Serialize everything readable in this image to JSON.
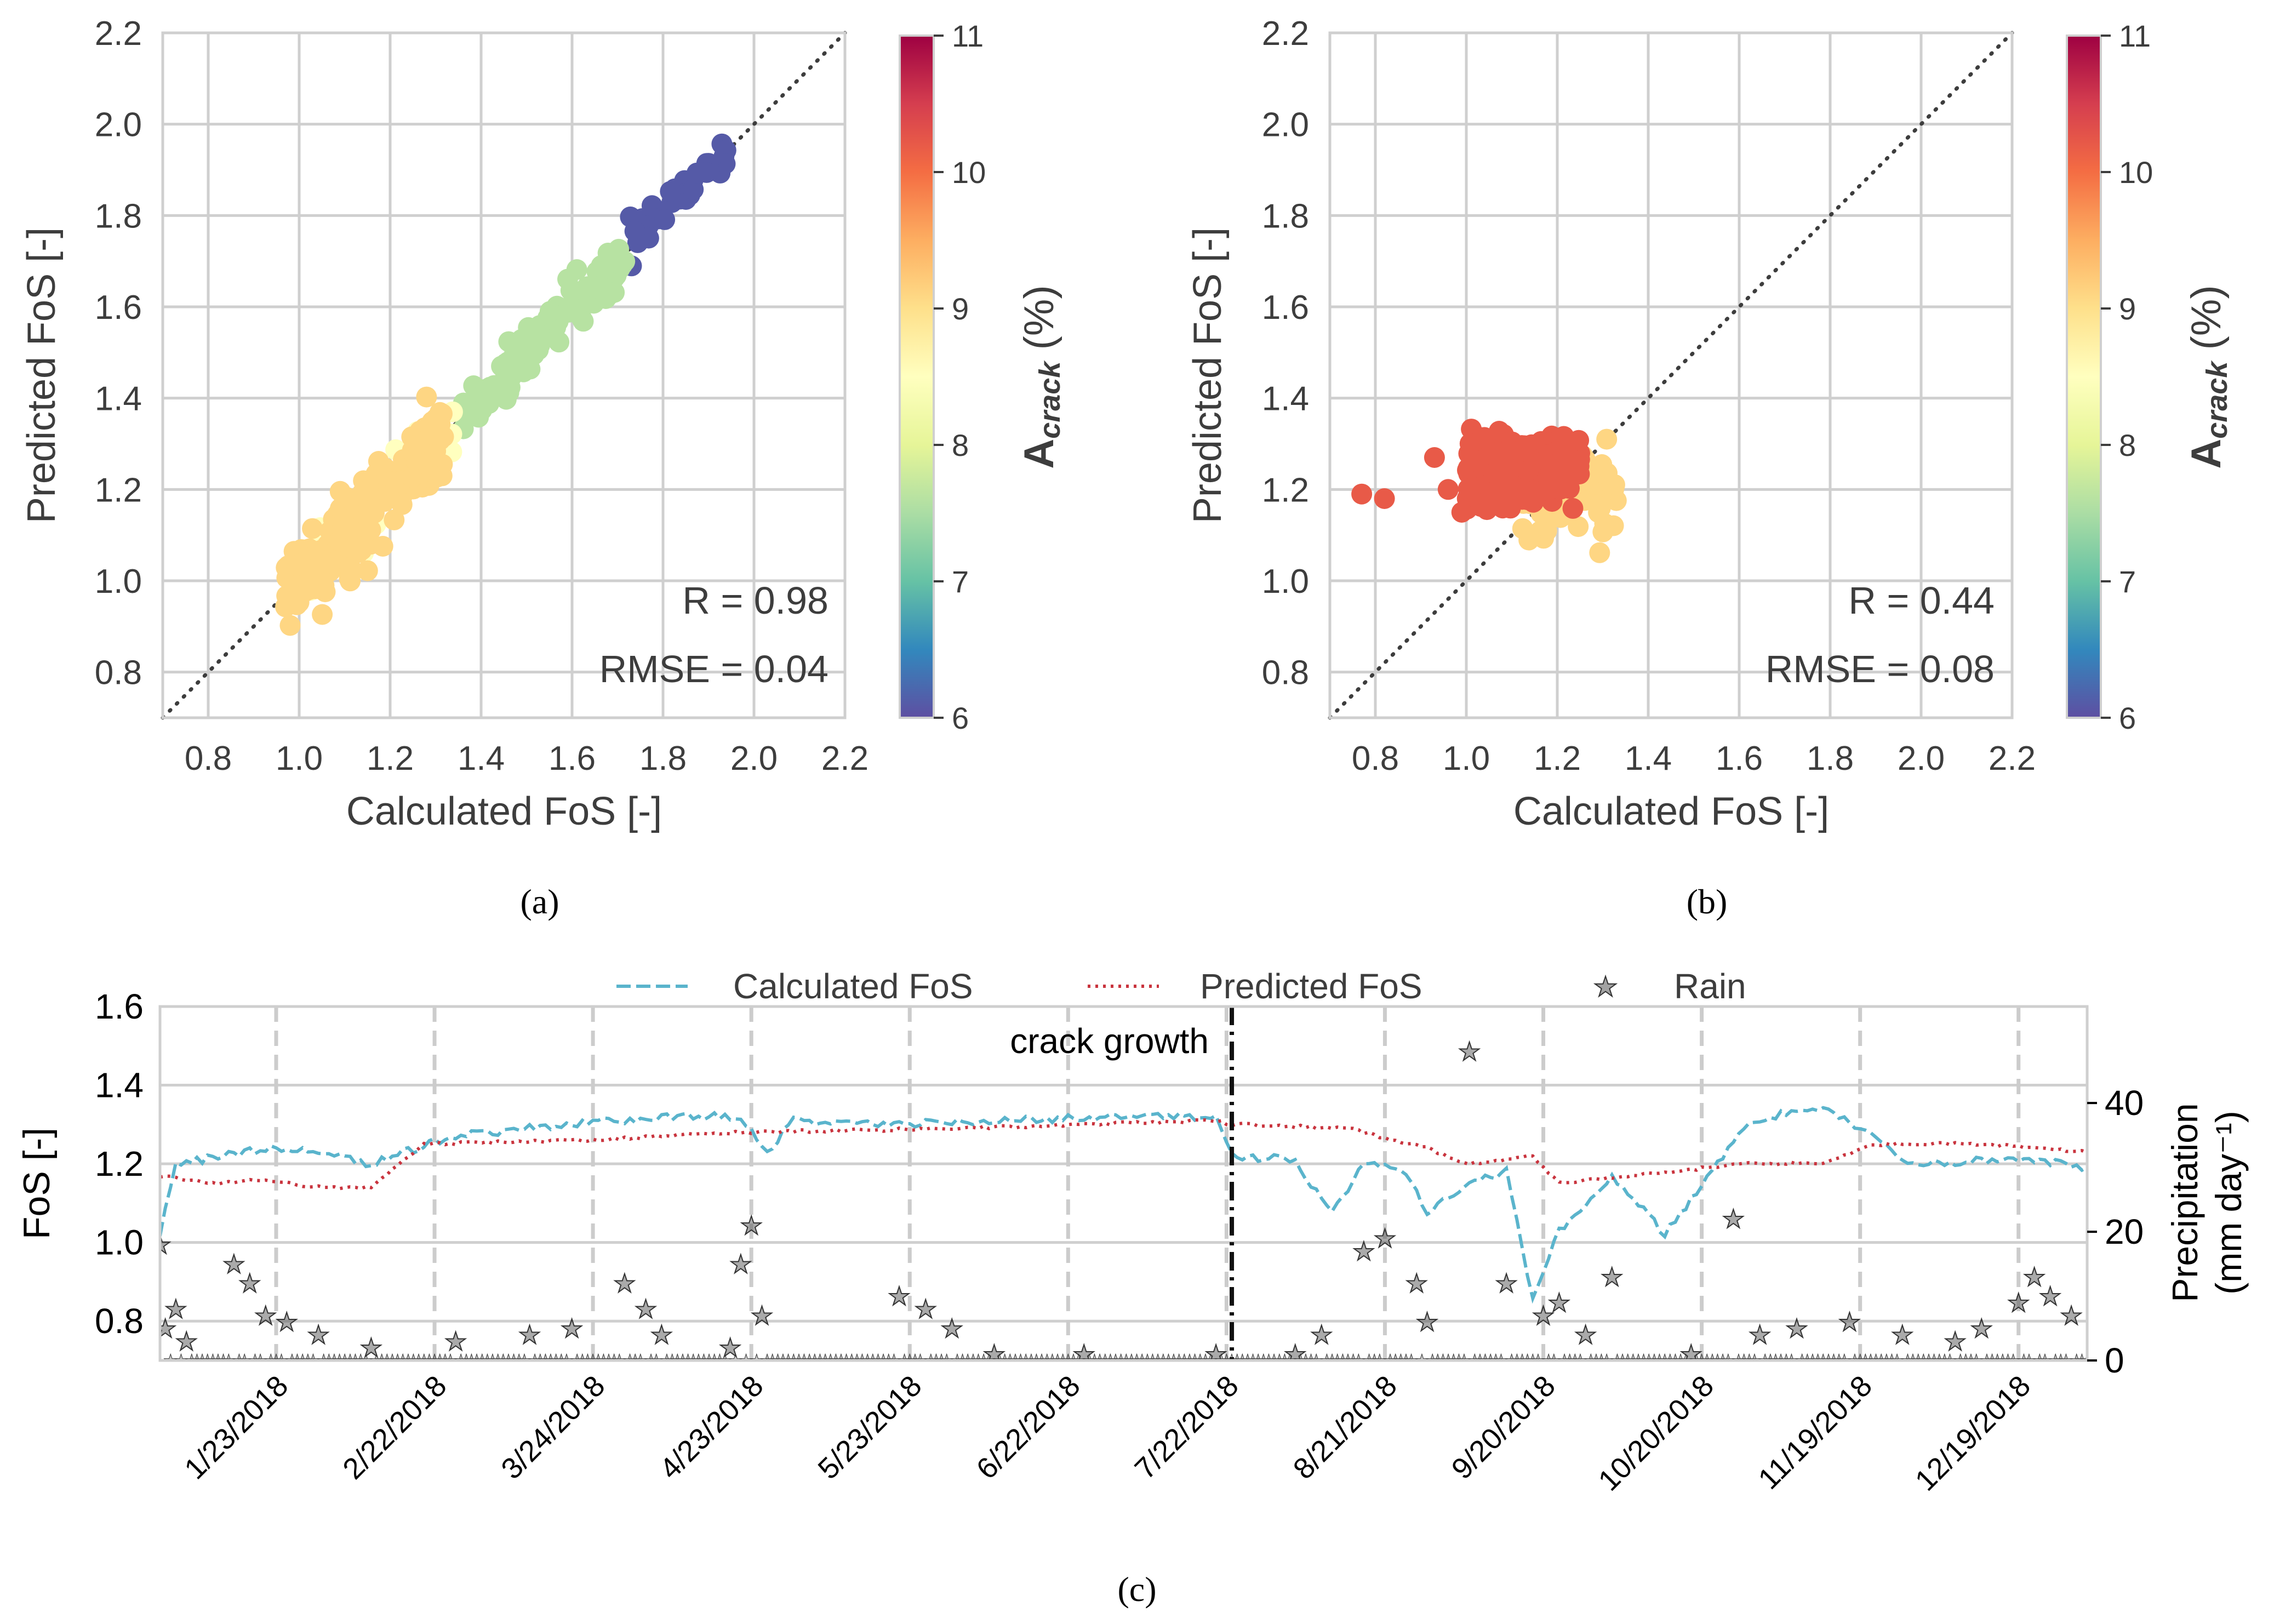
{
  "figure": {
    "panel_labels": [
      "(a)",
      "(b)",
      "(c)"
    ]
  },
  "chart_data": [
    {
      "id": "a",
      "type": "scatter",
      "xlabel": "Calculated FoS [-]",
      "ylabel": "Predicted FoS [-]",
      "xlim": [
        0.7,
        2.2
      ],
      "ylim": [
        0.7,
        2.2
      ],
      "xticks": [
        "0.8",
        "1.0",
        "1.2",
        "1.4",
        "1.6",
        "1.8",
        "2.0",
        "2.2"
      ],
      "yticks": [
        "0.8",
        "1.0",
        "1.2",
        "1.4",
        "1.6",
        "1.8",
        "2.0",
        "2.2"
      ],
      "reference_line": "1:1",
      "annotations": [
        "R = 0.98",
        "RMSE = 0.04"
      ],
      "colorbar": {
        "label_main": "A",
        "label_sub": "crack",
        "label_unit": " (%)",
        "range": [
          6,
          11
        ],
        "ticks": [
          "6",
          "7",
          "8",
          "9",
          "10",
          "11"
        ],
        "colormap": "Spectral_r"
      },
      "clusters": [
        {
          "name": "Acrack ~6 (purple)",
          "color_value": 6.1,
          "x_range": [
            1.72,
            1.95
          ],
          "slope": 0.93,
          "spread": 0.02,
          "n": 40
        },
        {
          "name": "Acrack ~7.6 (green)",
          "color_value": 7.6,
          "x_range": [
            1.36,
            1.72
          ],
          "slope": 1.0,
          "spread": 0.03,
          "n": 110
        },
        {
          "name": "Acrack ~8.5 (light yellow)",
          "color_value": 8.5,
          "x_range": [
            1.0,
            1.35
          ],
          "slope": 1.0,
          "spread": 0.04,
          "n": 30
        },
        {
          "name": "Acrack ~9.1 (orange)",
          "color_value": 9.1,
          "x_range": [
            0.97,
            1.32
          ],
          "slope": 1.0,
          "spread": 0.045,
          "n": 260
        }
      ]
    },
    {
      "id": "b",
      "type": "scatter",
      "xlabel": "Calculated FoS [-]",
      "ylabel": "Predicted FoS [-]",
      "xlim": [
        0.7,
        2.2
      ],
      "ylim": [
        0.7,
        2.2
      ],
      "xticks": [
        "0.8",
        "1.0",
        "1.2",
        "1.4",
        "1.6",
        "1.8",
        "2.0",
        "2.2"
      ],
      "yticks": [
        "0.8",
        "1.0",
        "1.2",
        "1.4",
        "1.6",
        "1.8",
        "2.0",
        "2.2"
      ],
      "reference_line": "1:1",
      "annotations": [
        "R = 0.44",
        "RMSE = 0.08"
      ],
      "colorbar": {
        "label_main": "A",
        "label_sub": "crack",
        "label_unit": " (%)",
        "range": [
          6,
          11
        ],
        "ticks": [
          "6",
          "7",
          "8",
          "9",
          "10",
          "11"
        ],
        "colormap": "Spectral_r"
      },
      "clusters": [
        {
          "name": "Acrack ~9.1 (orange)",
          "color_value": 9.1,
          "x_range": [
            1.12,
            1.33
          ],
          "y_center": 1.2,
          "spread": 0.05,
          "n": 90
        },
        {
          "name": "Acrack ~10.2 (red)",
          "color_value": 10.2,
          "x_range": [
            1.0,
            1.25
          ],
          "y_center": 1.24,
          "spread": 0.035,
          "n": 260
        },
        {
          "name": "outliers",
          "color_value": 10.2,
          "points": [
            [
              0.77,
              1.19
            ],
            [
              0.82,
              1.18
            ],
            [
              0.93,
              1.27
            ],
            [
              0.96,
              1.2
            ],
            [
              0.99,
              1.15
            ]
          ]
        }
      ]
    },
    {
      "id": "c",
      "type": "line",
      "ylabel_left": "FoS [-]",
      "ylabel_right": [
        "Precipitation",
        "(mm day⁻¹)"
      ],
      "ylim_left": [
        0.7,
        1.6
      ],
      "ylim_right": [
        0,
        55
      ],
      "yticks_left": [
        "0.8",
        "1.0",
        "1.2",
        "1.4",
        "1.6"
      ],
      "yticks_right": [
        "0",
        "20",
        "40"
      ],
      "xlim_days": [
        0,
        365
      ],
      "xticks": [
        {
          "label": "1/23/2018",
          "day": 22
        },
        {
          "label": "2/22/2018",
          "day": 52
        },
        {
          "label": "3/24/2018",
          "day": 82
        },
        {
          "label": "4/23/2018",
          "day": 112
        },
        {
          "label": "5/23/2018",
          "day": 142
        },
        {
          "label": "6/22/2018",
          "day": 172
        },
        {
          "label": "7/22/2018",
          "day": 202
        },
        {
          "label": "8/21/2018",
          "day": 232
        },
        {
          "label": "9/20/2018",
          "day": 262
        },
        {
          "label": "10/20/2018",
          "day": 292
        },
        {
          "label": "11/19/2018",
          "day": 322
        },
        {
          "label": "12/19/2018",
          "day": 352
        }
      ],
      "event": {
        "label": "crack growth",
        "day": 203
      },
      "legend": [
        "Calculated FoS",
        "Predicted FoS",
        "Rain"
      ],
      "calculated_keypoints": [
        [
          0,
          1.02
        ],
        [
          3,
          1.2
        ],
        [
          8,
          1.21
        ],
        [
          20,
          1.24
        ],
        [
          30,
          1.23
        ],
        [
          40,
          1.2
        ],
        [
          55,
          1.27
        ],
        [
          70,
          1.29
        ],
        [
          85,
          1.31
        ],
        [
          100,
          1.32
        ],
        [
          110,
          1.32
        ],
        [
          115,
          1.23
        ],
        [
          120,
          1.31
        ],
        [
          140,
          1.3
        ],
        [
          160,
          1.31
        ],
        [
          180,
          1.32
        ],
        [
          200,
          1.32
        ],
        [
          203,
          1.22
        ],
        [
          215,
          1.21
        ],
        [
          222,
          1.07
        ],
        [
          228,
          1.2
        ],
        [
          235,
          1.19
        ],
        [
          240,
          1.08
        ],
        [
          248,
          1.15
        ],
        [
          255,
          1.18
        ],
        [
          260,
          0.85
        ],
        [
          265,
          1.03
        ],
        [
          275,
          1.17
        ],
        [
          280,
          1.1
        ],
        [
          285,
          1.02
        ],
        [
          300,
          1.29
        ],
        [
          308,
          1.33
        ],
        [
          315,
          1.34
        ],
        [
          325,
          1.27
        ],
        [
          330,
          1.2
        ],
        [
          350,
          1.21
        ],
        [
          360,
          1.2
        ],
        [
          365,
          1.19
        ]
      ],
      "predicted_keypoints": [
        [
          0,
          1.17
        ],
        [
          10,
          1.15
        ],
        [
          20,
          1.16
        ],
        [
          30,
          1.14
        ],
        [
          40,
          1.14
        ],
        [
          50,
          1.25
        ],
        [
          80,
          1.26
        ],
        [
          110,
          1.28
        ],
        [
          150,
          1.29
        ],
        [
          200,
          1.31
        ],
        [
          203,
          1.3
        ],
        [
          225,
          1.29
        ],
        [
          240,
          1.24
        ],
        [
          248,
          1.2
        ],
        [
          260,
          1.22
        ],
        [
          265,
          1.15
        ],
        [
          280,
          1.17
        ],
        [
          300,
          1.2
        ],
        [
          315,
          1.2
        ],
        [
          325,
          1.25
        ],
        [
          345,
          1.25
        ],
        [
          355,
          1.24
        ],
        [
          365,
          1.23
        ]
      ],
      "rain_events": [
        [
          0,
          18
        ],
        [
          1,
          5
        ],
        [
          3,
          8
        ],
        [
          5,
          3
        ],
        [
          14,
          15
        ],
        [
          17,
          12
        ],
        [
          20,
          7
        ],
        [
          24,
          6
        ],
        [
          30,
          4
        ],
        [
          40,
          2
        ],
        [
          56,
          3
        ],
        [
          70,
          4
        ],
        [
          78,
          5
        ],
        [
          88,
          12
        ],
        [
          92,
          8
        ],
        [
          95,
          4
        ],
        [
          108,
          2
        ],
        [
          110,
          15
        ],
        [
          112,
          21
        ],
        [
          114,
          7
        ],
        [
          140,
          10
        ],
        [
          145,
          8
        ],
        [
          150,
          5
        ],
        [
          158,
          1
        ],
        [
          175,
          1
        ],
        [
          200,
          1
        ],
        [
          215,
          1
        ],
        [
          220,
          4
        ],
        [
          228,
          17
        ],
        [
          232,
          19
        ],
        [
          238,
          12
        ],
        [
          240,
          6
        ],
        [
          248,
          48
        ],
        [
          255,
          12
        ],
        [
          262,
          7
        ],
        [
          265,
          9
        ],
        [
          270,
          4
        ],
        [
          275,
          13
        ],
        [
          290,
          1
        ],
        [
          298,
          22
        ],
        [
          303,
          4
        ],
        [
          310,
          5
        ],
        [
          320,
          6
        ],
        [
          330,
          4
        ],
        [
          340,
          3
        ],
        [
          345,
          5
        ],
        [
          352,
          9
        ],
        [
          355,
          13
        ],
        [
          358,
          10
        ],
        [
          362,
          7
        ]
      ]
    }
  ]
}
